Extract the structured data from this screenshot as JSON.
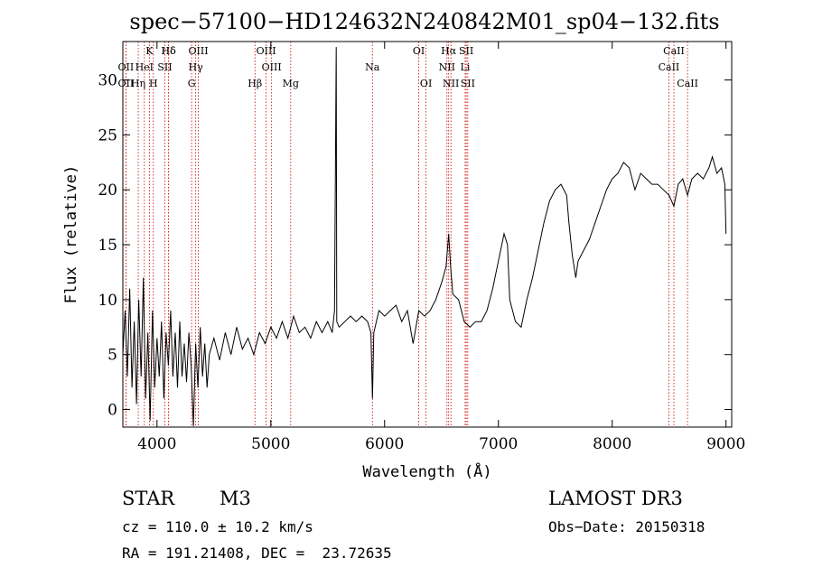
{
  "chart_data": {
    "type": "line",
    "title": "spec−57100−HD124632N240842M01_sp04−132.fits",
    "xlabel": "Wavelength (Å)",
    "ylabel": "Flux (relative)",
    "xlim": [
      3700,
      9050
    ],
    "ylim": [
      -1.6,
      33.5
    ],
    "xticks": [
      4000,
      5000,
      6000,
      7000,
      8000,
      9000
    ],
    "yticks": [
      0,
      5,
      10,
      15,
      20,
      25,
      30
    ],
    "line_color": "#000000",
    "marker_color": "#cc0000",
    "line_markers": [
      {
        "label": "Hδ",
        "x": 4102,
        "row": 0
      },
      {
        "label": "K",
        "x": 3934,
        "row": 0
      },
      {
        "label": "Hδ",
        "x": 4102,
        "row": 0
      },
      {
        "label": "OIII",
        "x": 4363,
        "row": 0
      },
      {
        "label": "OIII",
        "x": 4959,
        "row": 0
      },
      {
        "label": "OI",
        "x": 6300,
        "row": 0
      },
      {
        "label": "Hα",
        "x": 6563,
        "row": 0
      },
      {
        "label": "SII",
        "x": 6717,
        "row": 0
      },
      {
        "label": "CaII",
        "x": 8542,
        "row": 0
      },
      {
        "label": "OII",
        "x": 3727,
        "row": 1
      },
      {
        "label": "HeI",
        "x": 3889,
        "row": 1
      },
      {
        "label": "SII",
        "x": 4069,
        "row": 1
      },
      {
        "label": "Hγ",
        "x": 4340,
        "row": 1
      },
      {
        "label": "OIII",
        "x": 5007,
        "row": 1
      },
      {
        "label": "Na",
        "x": 5893,
        "row": 1
      },
      {
        "label": "NII",
        "x": 6548,
        "row": 1
      },
      {
        "label": "Li",
        "x": 6708,
        "row": 1
      },
      {
        "label": "CaII",
        "x": 8498,
        "row": 1
      },
      {
        "label": "OII",
        "x": 3727,
        "row": 2
      },
      {
        "label": "Hη",
        "x": 3835,
        "row": 2
      },
      {
        "label": "H",
        "x": 3968,
        "row": 2
      },
      {
        "label": "G",
        "x": 4304,
        "row": 2
      },
      {
        "label": "Hβ",
        "x": 4861,
        "row": 2
      },
      {
        "label": "Mg",
        "x": 5175,
        "row": 2
      },
      {
        "label": "OI",
        "x": 6364,
        "row": 2
      },
      {
        "label": "NII",
        "x": 6583,
        "row": 2
      },
      {
        "label": "SII",
        "x": 6731,
        "row": 2
      },
      {
        "label": "CaII",
        "x": 8662,
        "row": 2
      }
    ],
    "series": [
      {
        "name": "flux",
        "points": [
          [
            3700,
            5.0
          ],
          [
            3720,
            9.0
          ],
          [
            3740,
            3.0
          ],
          [
            3760,
            11.0
          ],
          [
            3780,
            2.0
          ],
          [
            3800,
            8.0
          ],
          [
            3820,
            0.5
          ],
          [
            3840,
            10.0
          ],
          [
            3860,
            3.0
          ],
          [
            3880,
            12.0
          ],
          [
            3900,
            1.0
          ],
          [
            3920,
            7.0
          ],
          [
            3940,
            -1.0
          ],
          [
            3960,
            9.0
          ],
          [
            3980,
            2.0
          ],
          [
            4000,
            6.5
          ],
          [
            4020,
            3.0
          ],
          [
            4040,
            8.0
          ],
          [
            4060,
            1.0
          ],
          [
            4080,
            7.0
          ],
          [
            4100,
            4.0
          ],
          [
            4120,
            9.0
          ],
          [
            4140,
            3.0
          ],
          [
            4160,
            7.0
          ],
          [
            4180,
            2.0
          ],
          [
            4200,
            8.0
          ],
          [
            4220,
            3.0
          ],
          [
            4240,
            6.0
          ],
          [
            4260,
            2.5
          ],
          [
            4280,
            7.0
          ],
          [
            4300,
            4.0
          ],
          [
            4320,
            -1.5
          ],
          [
            4340,
            6.0
          ],
          [
            4360,
            2.0
          ],
          [
            4380,
            7.5
          ],
          [
            4400,
            3.0
          ],
          [
            4420,
            6.0
          ],
          [
            4440,
            2.0
          ],
          [
            4460,
            5.0
          ],
          [
            4500,
            6.5
          ],
          [
            4550,
            4.5
          ],
          [
            4600,
            7.0
          ],
          [
            4650,
            5.0
          ],
          [
            4700,
            7.5
          ],
          [
            4750,
            5.5
          ],
          [
            4800,
            6.5
          ],
          [
            4850,
            5.0
          ],
          [
            4900,
            7.0
          ],
          [
            4950,
            6.0
          ],
          [
            5000,
            7.5
          ],
          [
            5050,
            6.5
          ],
          [
            5100,
            8.0
          ],
          [
            5150,
            6.5
          ],
          [
            5200,
            8.5
          ],
          [
            5250,
            7.0
          ],
          [
            5300,
            7.5
          ],
          [
            5350,
            6.5
          ],
          [
            5400,
            8.0
          ],
          [
            5450,
            7.0
          ],
          [
            5500,
            8.0
          ],
          [
            5540,
            7.0
          ],
          [
            5560,
            9.0
          ],
          [
            5575,
            33.0
          ],
          [
            5580,
            8.0
          ],
          [
            5600,
            7.5
          ],
          [
            5650,
            8.0
          ],
          [
            5700,
            8.5
          ],
          [
            5750,
            8.0
          ],
          [
            5800,
            8.5
          ],
          [
            5850,
            8.0
          ],
          [
            5880,
            7.0
          ],
          [
            5893,
            1.0
          ],
          [
            5905,
            7.0
          ],
          [
            5950,
            9.0
          ],
          [
            6000,
            8.5
          ],
          [
            6050,
            9.0
          ],
          [
            6100,
            9.5
          ],
          [
            6150,
            8.0
          ],
          [
            6200,
            9.0
          ],
          [
            6250,
            6.0
          ],
          [
            6300,
            9.0
          ],
          [
            6350,
            8.5
          ],
          [
            6400,
            9.0
          ],
          [
            6450,
            10.0
          ],
          [
            6500,
            11.5
          ],
          [
            6540,
            13.0
          ],
          [
            6563,
            16.0
          ],
          [
            6580,
            13.0
          ],
          [
            6600,
            10.5
          ],
          [
            6650,
            10.0
          ],
          [
            6700,
            8.0
          ],
          [
            6750,
            7.5
          ],
          [
            6800,
            8.0
          ],
          [
            6850,
            8.0
          ],
          [
            6900,
            9.0
          ],
          [
            6950,
            11.0
          ],
          [
            7000,
            13.5
          ],
          [
            7050,
            16.0
          ],
          [
            7080,
            15.0
          ],
          [
            7100,
            10.0
          ],
          [
            7150,
            8.0
          ],
          [
            7200,
            7.5
          ],
          [
            7250,
            10.0
          ],
          [
            7300,
            12.0
          ],
          [
            7350,
            14.5
          ],
          [
            7400,
            17.0
          ],
          [
            7450,
            19.0
          ],
          [
            7500,
            20.0
          ],
          [
            7550,
            20.5
          ],
          [
            7600,
            19.5
          ],
          [
            7620,
            17.0
          ],
          [
            7650,
            14.0
          ],
          [
            7680,
            12.0
          ],
          [
            7700,
            13.5
          ],
          [
            7750,
            14.5
          ],
          [
            7800,
            15.5
          ],
          [
            7850,
            17.0
          ],
          [
            7900,
            18.5
          ],
          [
            7950,
            20.0
          ],
          [
            8000,
            21.0
          ],
          [
            8050,
            21.5
          ],
          [
            8100,
            22.5
          ],
          [
            8150,
            22.0
          ],
          [
            8200,
            20.0
          ],
          [
            8250,
            21.5
          ],
          [
            8300,
            21.0
          ],
          [
            8350,
            20.5
          ],
          [
            8400,
            20.5
          ],
          [
            8450,
            20.0
          ],
          [
            8500,
            19.5
          ],
          [
            8542,
            18.5
          ],
          [
            8580,
            20.5
          ],
          [
            8620,
            21.0
          ],
          [
            8662,
            19.5
          ],
          [
            8700,
            21.0
          ],
          [
            8750,
            21.5
          ],
          [
            8800,
            21.0
          ],
          [
            8850,
            22.0
          ],
          [
            8880,
            23.0
          ],
          [
            8920,
            21.5
          ],
          [
            8960,
            22.0
          ],
          [
            8990,
            20.5
          ],
          [
            9000,
            16.0
          ]
        ]
      }
    ]
  },
  "info": {
    "object_type": "STAR",
    "subclass": "M3",
    "survey": "LAMOST DR3",
    "cz": "cz = 110.0 ± 10.2 km/s",
    "obs_date": "Obs−Date: 20150318",
    "radec": "RA = 191.21408, DEC =  23.72635"
  }
}
